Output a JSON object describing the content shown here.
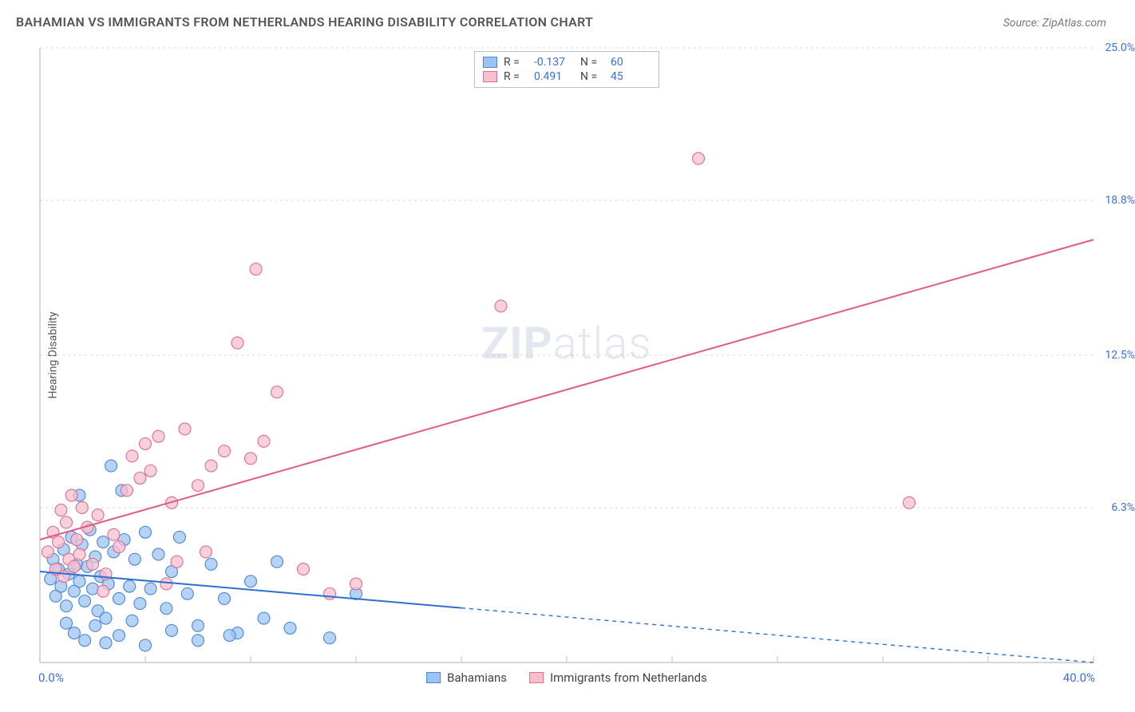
{
  "title": "BAHAMIAN VS IMMIGRANTS FROM NETHERLANDS HEARING DISABILITY CORRELATION CHART",
  "source": "Source: ZipAtlas.com",
  "y_axis_label": "Hearing Disability",
  "watermark": {
    "bold": "ZIP",
    "light": "atlas"
  },
  "chart": {
    "type": "scatter",
    "background_color": "#ffffff",
    "grid_color": "#d8d8d8",
    "axis_color": "#bfbfbf",
    "tick_color": "#bfbfbf",
    "xlim": [
      0,
      40
    ],
    "ylim": [
      0,
      25
    ],
    "x_end_labels": {
      "min": "0.0%",
      "max": "40.0%"
    },
    "x_ticks": [
      0,
      4,
      8,
      12,
      16,
      20,
      24,
      28,
      32,
      36,
      40
    ],
    "y_ticks": [
      {
        "v": 25.0,
        "label": "25.0%"
      },
      {
        "v": 18.8,
        "label": "18.8%"
      },
      {
        "v": 12.5,
        "label": "12.5%"
      },
      {
        "v": 6.3,
        "label": "6.3%"
      }
    ],
    "marker_radius": 7.5,
    "marker_stroke_width": 1.1,
    "trend_line_width": 2,
    "dash_pattern": "5,5",
    "series": [
      {
        "name": "Bahamians",
        "fill": "#9dc3f2",
        "stroke": "#4a87d6",
        "line_color": "#2f6fd0",
        "stats": {
          "R": "-0.137",
          "N": "60"
        },
        "trend": {
          "x1": 0,
          "y1": 3.7,
          "x2": 40,
          "y2": 0.0,
          "solid_until_x": 16
        },
        "points": [
          [
            0.4,
            3.4
          ],
          [
            0.5,
            4.2
          ],
          [
            0.6,
            2.7
          ],
          [
            0.7,
            3.8
          ],
          [
            0.8,
            3.1
          ],
          [
            0.9,
            4.6
          ],
          [
            1.0,
            2.3
          ],
          [
            1.1,
            3.6
          ],
          [
            1.2,
            5.1
          ],
          [
            1.3,
            2.9
          ],
          [
            1.4,
            4.0
          ],
          [
            1.5,
            3.3
          ],
          [
            1.6,
            4.8
          ],
          [
            1.7,
            2.5
          ],
          [
            1.8,
            3.9
          ],
          [
            1.9,
            5.4
          ],
          [
            2.0,
            3.0
          ],
          [
            2.1,
            4.3
          ],
          [
            2.2,
            2.1
          ],
          [
            2.3,
            3.5
          ],
          [
            2.4,
            4.9
          ],
          [
            2.5,
            1.8
          ],
          [
            2.6,
            3.2
          ],
          [
            2.8,
            4.5
          ],
          [
            3.0,
            2.6
          ],
          [
            3.2,
            5.0
          ],
          [
            3.4,
            3.1
          ],
          [
            3.6,
            4.2
          ],
          [
            3.8,
            2.4
          ],
          [
            4.0,
            5.3
          ],
          [
            4.2,
            3.0
          ],
          [
            4.5,
            4.4
          ],
          [
            4.8,
            2.2
          ],
          [
            5.0,
            3.7
          ],
          [
            5.3,
            5.1
          ],
          [
            5.6,
            2.8
          ],
          [
            6.0,
            1.5
          ],
          [
            6.5,
            4.0
          ],
          [
            7.0,
            2.6
          ],
          [
            7.5,
            1.2
          ],
          [
            8.0,
            3.3
          ],
          [
            8.5,
            1.8
          ],
          [
            9.0,
            4.1
          ],
          [
            9.5,
            1.4
          ],
          [
            2.7,
            8.0
          ],
          [
            3.1,
            7.0
          ],
          [
            1.0,
            1.6
          ],
          [
            1.3,
            1.2
          ],
          [
            1.7,
            0.9
          ],
          [
            2.1,
            1.5
          ],
          [
            2.5,
            0.8
          ],
          [
            3.0,
            1.1
          ],
          [
            3.5,
            1.7
          ],
          [
            4.0,
            0.7
          ],
          [
            5.0,
            1.3
          ],
          [
            6.0,
            0.9
          ],
          [
            7.2,
            1.1
          ],
          [
            11.0,
            1.0
          ],
          [
            12.0,
            2.8
          ],
          [
            1.5,
            6.8
          ]
        ]
      },
      {
        "name": "Immigrants from Netherlands",
        "fill": "#f6c0cf",
        "stroke": "#e26b8f",
        "line_color": "#e25b84",
        "stats": {
          "R": "0.491",
          "N": "45"
        },
        "trend": {
          "x1": 0,
          "y1": 5.0,
          "x2": 40,
          "y2": 17.2,
          "solid_until_x": 40
        },
        "points": [
          [
            0.3,
            4.5
          ],
          [
            0.5,
            5.3
          ],
          [
            0.6,
            3.8
          ],
          [
            0.7,
            4.9
          ],
          [
            0.8,
            6.2
          ],
          [
            0.9,
            3.5
          ],
          [
            1.0,
            5.7
          ],
          [
            1.1,
            4.2
          ],
          [
            1.2,
            6.8
          ],
          [
            1.3,
            3.9
          ],
          [
            1.4,
            5.0
          ],
          [
            1.5,
            4.4
          ],
          [
            1.6,
            6.3
          ],
          [
            1.8,
            5.5
          ],
          [
            2.0,
            4.0
          ],
          [
            2.2,
            6.0
          ],
          [
            2.5,
            3.6
          ],
          [
            2.8,
            5.2
          ],
          [
            3.0,
            4.7
          ],
          [
            3.3,
            7.0
          ],
          [
            3.5,
            8.4
          ],
          [
            3.8,
            7.5
          ],
          [
            4.0,
            8.9
          ],
          [
            4.2,
            7.8
          ],
          [
            4.5,
            9.2
          ],
          [
            5.0,
            6.5
          ],
          [
            5.5,
            9.5
          ],
          [
            6.0,
            7.2
          ],
          [
            6.5,
            8.0
          ],
          [
            7.0,
            8.6
          ],
          [
            7.5,
            13.0
          ],
          [
            8.0,
            8.3
          ],
          [
            8.5,
            9.0
          ],
          [
            9.0,
            11.0
          ],
          [
            10.0,
            3.8
          ],
          [
            11.0,
            2.8
          ],
          [
            12.0,
            3.2
          ],
          [
            8.2,
            16.0
          ],
          [
            17.5,
            14.5
          ],
          [
            25.0,
            20.5
          ],
          [
            5.2,
            4.1
          ],
          [
            6.3,
            4.5
          ],
          [
            4.8,
            3.2
          ],
          [
            33.0,
            6.5
          ],
          [
            2.4,
            2.9
          ]
        ]
      }
    ]
  },
  "legend_labels": {
    "R": "R =",
    "N": "N ="
  }
}
